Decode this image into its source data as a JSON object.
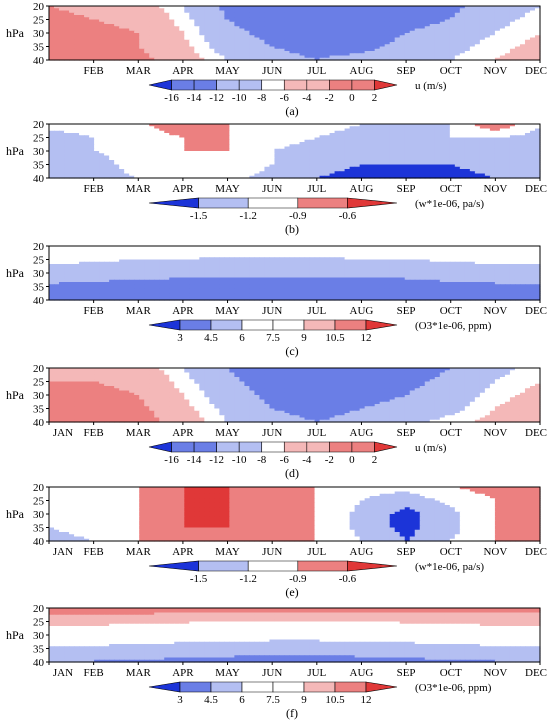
{
  "chart_data": {
    "type": "contour",
    "months_short": [
      "FEB",
      "MAR",
      "APR",
      "MAY",
      "JUN",
      "JUL",
      "AUG",
      "SEP",
      "OCT",
      "NOV",
      "DEC"
    ],
    "months_full": [
      "JAN",
      "FEB",
      "MAR",
      "APR",
      "MAY",
      "JUN",
      "JUL",
      "AUG",
      "SEP",
      "OCT",
      "NOV",
      "DEC"
    ],
    "palette": {
      "neg_dark": "#1c34d8",
      "neg_mid": "#6a7ee6",
      "neg_light": "#b4bff2",
      "neutral": "#ffffff",
      "pos_light": "#f4b8b8",
      "pos_mid": "#ec8080",
      "pos_dark": "#e03838"
    },
    "panels": [
      {
        "label": "(a)",
        "ylabel": "hPa",
        "yticks": [
          "20",
          "25",
          "30",
          "35",
          "40"
        ],
        "ylim": [
          40,
          20
        ],
        "xtick_set": "short",
        "colorbar": {
          "ticks": [
            "-16",
            "-14",
            "-12",
            "-10",
            "-8",
            "-6",
            "-4",
            "-2",
            "0",
            "2"
          ],
          "units": "u (m/s)"
        },
        "rows": [
          [
            -2,
            -3,
            -4,
            -8,
            -13,
            -15,
            -16,
            -16,
            -15,
            -13,
            -10,
            -8
          ],
          [
            -1,
            -2,
            -3,
            -7,
            -12,
            -14,
            -15,
            -15,
            -14,
            -12,
            -9,
            -7
          ],
          [
            0,
            -1,
            -2,
            -6,
            -11,
            -13,
            -14,
            -14,
            -12,
            -10,
            -8,
            -6
          ],
          [
            0,
            0,
            -2,
            -5,
            -10,
            -12,
            -13,
            -13,
            -11,
            -9,
            -7,
            -5
          ],
          [
            1,
            0,
            -1,
            -4,
            -8,
            -11,
            -12,
            -11,
            -9,
            -8,
            -6,
            -4
          ]
        ]
      },
      {
        "label": "(b)",
        "ylabel": "hPa",
        "yticks": [
          "20",
          "25",
          "30",
          "35",
          "40"
        ],
        "ylim": [
          40,
          20
        ],
        "xtick_set": "short",
        "colorbar": {
          "ticks": [
            "-1.5",
            "-1.2",
            "-0.9",
            "-0.6"
          ],
          "units": "(w*1e-06, pa/s)"
        },
        "rows": [
          [
            -1.1,
            -1.1,
            -1.0,
            -0.6,
            -0.9,
            -1.1,
            -1.1,
            -1.2,
            -1.2,
            -1.2,
            -0.6,
            -1.2
          ],
          [
            -1.3,
            -1.2,
            -1.1,
            -0.9,
            -0.9,
            -1.1,
            -1.2,
            -1.3,
            -1.3,
            -1.2,
            -1.2,
            -1.3
          ],
          [
            -1.4,
            -1.2,
            -1.1,
            -0.9,
            -0.9,
            -1.2,
            -1.3,
            -1.4,
            -1.4,
            -1.4,
            -1.3,
            -1.4
          ],
          [
            -1.5,
            -1.3,
            -1.1,
            -0.9,
            -1.0,
            -1.2,
            -1.4,
            -1.5,
            -1.5,
            -1.5,
            -1.4,
            -1.5
          ],
          [
            -1.5,
            -1.3,
            -1.2,
            -1.1,
            -1.1,
            -1.3,
            -1.5,
            -1.6,
            -1.6,
            -1.6,
            -1.5,
            -1.5
          ]
        ]
      },
      {
        "label": "(c)",
        "ylabel": "hPa",
        "yticks": [
          "20",
          "25",
          "30",
          "35",
          "40"
        ],
        "ylim": [
          40,
          20
        ],
        "xtick_set": "short",
        "colorbar": {
          "ticks": [
            "3",
            "4.5",
            "6",
            "7.5",
            "9",
            "10.5",
            "12"
          ],
          "units": "(O3*1e-06, ppm)"
        },
        "rows": [
          [
            8.5,
            8.0,
            7.8,
            7.6,
            7.5,
            7.5,
            7.5,
            7.6,
            7.8,
            8.0,
            8.3,
            8.5
          ],
          [
            6.5,
            6.2,
            6.0,
            5.9,
            5.8,
            5.8,
            5.8,
            5.9,
            6.0,
            6.2,
            6.4,
            6.5
          ],
          [
            5.2,
            5.0,
            4.9,
            4.8,
            4.7,
            4.7,
            4.7,
            4.7,
            4.8,
            5.0,
            5.1,
            5.2
          ],
          [
            4.3,
            4.2,
            4.1,
            4.0,
            4.0,
            4.0,
            4.0,
            4.0,
            4.1,
            4.2,
            4.3,
            4.3
          ],
          [
            3.2,
            3.2,
            3.2,
            3.2,
            3.2,
            3.2,
            3.2,
            3.2,
            3.2,
            3.2,
            3.2,
            3.2
          ]
        ]
      },
      {
        "label": "(d)",
        "ylabel": "hPa",
        "yticks": [
          "20",
          "25",
          "30",
          "35",
          "40"
        ],
        "ylim": [
          40,
          20
        ],
        "xtick_set": "full",
        "colorbar": {
          "ticks": [
            "-16",
            "-14",
            "-12",
            "-10",
            "-8",
            "-6",
            "-4",
            "-2",
            "0",
            "2"
          ],
          "units": "u (m/s)"
        },
        "rows": [
          [
            -3,
            -3,
            -4,
            -8,
            -12,
            -15,
            -16,
            -16,
            -14,
            -12,
            -9,
            -7
          ],
          [
            -2,
            -2,
            -3,
            -7,
            -11,
            -14,
            -15,
            -15,
            -13,
            -11,
            -8,
            -6
          ],
          [
            -1,
            -1,
            -2,
            -6,
            -10,
            -13,
            -14,
            -13,
            -12,
            -10,
            -7,
            -5
          ],
          [
            0,
            0,
            -1,
            -5,
            -9,
            -12,
            -13,
            -12,
            -11,
            -9,
            -6,
            -4
          ],
          [
            1,
            1,
            0,
            -4,
            -8,
            -11,
            -12,
            -11,
            -9,
            -7,
            -5,
            -3
          ]
        ]
      },
      {
        "label": "(e)",
        "ylabel": "hPa",
        "yticks": [
          "20",
          "25",
          "30",
          "35",
          "40"
        ],
        "ylim": [
          40,
          20
        ],
        "xtick_set": "full",
        "colorbar": {
          "ticks": [
            "-1.5",
            "-1.2",
            "-0.9",
            "-0.6"
          ],
          "units": "(w*1e-06, pa/s)"
        },
        "rows": [
          [
            -1.2,
            -1.0,
            -0.9,
            -0.6,
            -0.6,
            -0.8,
            -0.9,
            -1.1,
            -1.1,
            -0.9,
            -0.8,
            -0.9
          ],
          [
            -1.2,
            -1.0,
            -0.9,
            -0.6,
            -0.6,
            -0.7,
            -0.9,
            -1.2,
            -1.4,
            -1.1,
            -0.9,
            -0.8
          ],
          [
            -1.1,
            -1.0,
            -0.9,
            -0.6,
            -0.6,
            -0.7,
            -0.9,
            -1.3,
            -1.6,
            -1.3,
            -0.9,
            -0.6
          ],
          [
            -1.2,
            -1.1,
            -0.9,
            -0.6,
            -0.6,
            -0.7,
            -0.9,
            -1.3,
            -1.6,
            -1.3,
            -0.9,
            -0.7
          ],
          [
            -1.3,
            -1.2,
            -0.9,
            -0.7,
            -0.6,
            -0.7,
            -0.9,
            -1.2,
            -1.5,
            -1.2,
            -0.9,
            -0.9
          ]
        ]
      },
      {
        "label": "(f)",
        "ylabel": "hPa",
        "yticks": [
          "20",
          "25",
          "30",
          "35",
          "40"
        ],
        "ylim": [
          40,
          20
        ],
        "xtick_set": "full",
        "colorbar": {
          "ticks": [
            "3",
            "4.5",
            "6",
            "7.5",
            "9",
            "10.5",
            "12"
          ],
          "units": "(O3*1e-06, ppm)"
        },
        "rows": [
          [
            11.0,
            11.2,
            11.3,
            11.4,
            11.4,
            11.4,
            11.4,
            11.4,
            11.3,
            11.2,
            11.1,
            11.0
          ],
          [
            9.8,
            9.6,
            9.4,
            9.2,
            9.1,
            9.0,
            9.0,
            9.1,
            9.2,
            9.4,
            9.6,
            9.8
          ],
          [
            7.8,
            7.5,
            7.2,
            7.0,
            6.8,
            6.7,
            6.7,
            6.8,
            7.0,
            7.2,
            7.5,
            7.8
          ],
          [
            5.8,
            5.6,
            5.4,
            5.2,
            5.1,
            5.0,
            5.0,
            5.1,
            5.2,
            5.4,
            5.6,
            5.8
          ],
          [
            4.5,
            4.4,
            4.3,
            4.2,
            4.1,
            4.0,
            4.0,
            4.1,
            4.2,
            4.3,
            4.4,
            4.5
          ]
        ]
      }
    ]
  }
}
